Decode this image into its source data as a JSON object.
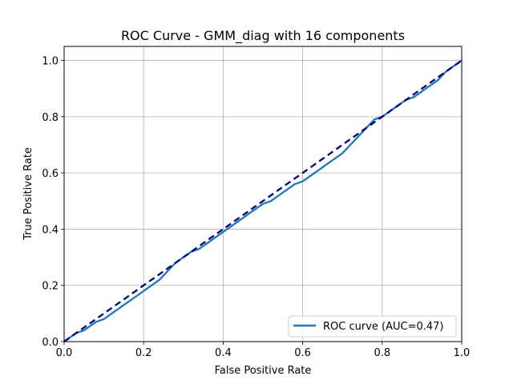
{
  "chart_data": {
    "type": "line",
    "title": "ROC Curve - GMM_diag with 16 components",
    "xlabel": "False Positive Rate",
    "ylabel": "True Positive Rate",
    "xlim": [
      0.0,
      1.0
    ],
    "ylim": [
      0.0,
      1.05
    ],
    "x_ticks": [
      0.0,
      0.2,
      0.4,
      0.6,
      0.8,
      1.0
    ],
    "y_ticks": [
      0.0,
      0.2,
      0.4,
      0.6,
      0.8,
      1.0
    ],
    "x_tick_labels": [
      "0.0",
      "0.2",
      "0.4",
      "0.6",
      "0.8",
      "1.0"
    ],
    "y_tick_labels": [
      "0.0",
      "0.2",
      "0.4",
      "0.6",
      "0.8",
      "1.0"
    ],
    "grid": true,
    "legend_position": "lower-right",
    "series": [
      {
        "name": "ROC curve (AUC=0.47)",
        "color": "#1f77b4",
        "style": "solid",
        "x": [
          0.0,
          0.01,
          0.02,
          0.03,
          0.05,
          0.06,
          0.08,
          0.1,
          0.12,
          0.14,
          0.16,
          0.18,
          0.2,
          0.22,
          0.24,
          0.26,
          0.28,
          0.3,
          0.32,
          0.34,
          0.36,
          0.38,
          0.4,
          0.42,
          0.44,
          0.46,
          0.48,
          0.5,
          0.52,
          0.54,
          0.56,
          0.58,
          0.6,
          0.62,
          0.64,
          0.66,
          0.68,
          0.7,
          0.72,
          0.74,
          0.76,
          0.78,
          0.8,
          0.82,
          0.84,
          0.86,
          0.88,
          0.9,
          0.92,
          0.94,
          0.96,
          0.98,
          1.0
        ],
        "y": [
          0.0,
          0.01,
          0.02,
          0.03,
          0.04,
          0.05,
          0.07,
          0.08,
          0.1,
          0.12,
          0.14,
          0.16,
          0.18,
          0.2,
          0.22,
          0.25,
          0.28,
          0.3,
          0.32,
          0.33,
          0.35,
          0.37,
          0.39,
          0.41,
          0.43,
          0.45,
          0.47,
          0.49,
          0.5,
          0.52,
          0.54,
          0.56,
          0.57,
          0.59,
          0.61,
          0.63,
          0.65,
          0.67,
          0.7,
          0.73,
          0.76,
          0.79,
          0.8,
          0.82,
          0.84,
          0.86,
          0.87,
          0.89,
          0.91,
          0.93,
          0.96,
          0.98,
          1.0
        ]
      },
      {
        "name": "",
        "color": "#000080",
        "style": "dashed",
        "x": [
          0.0,
          1.0
        ],
        "y": [
          0.0,
          1.0
        ]
      }
    ]
  }
}
